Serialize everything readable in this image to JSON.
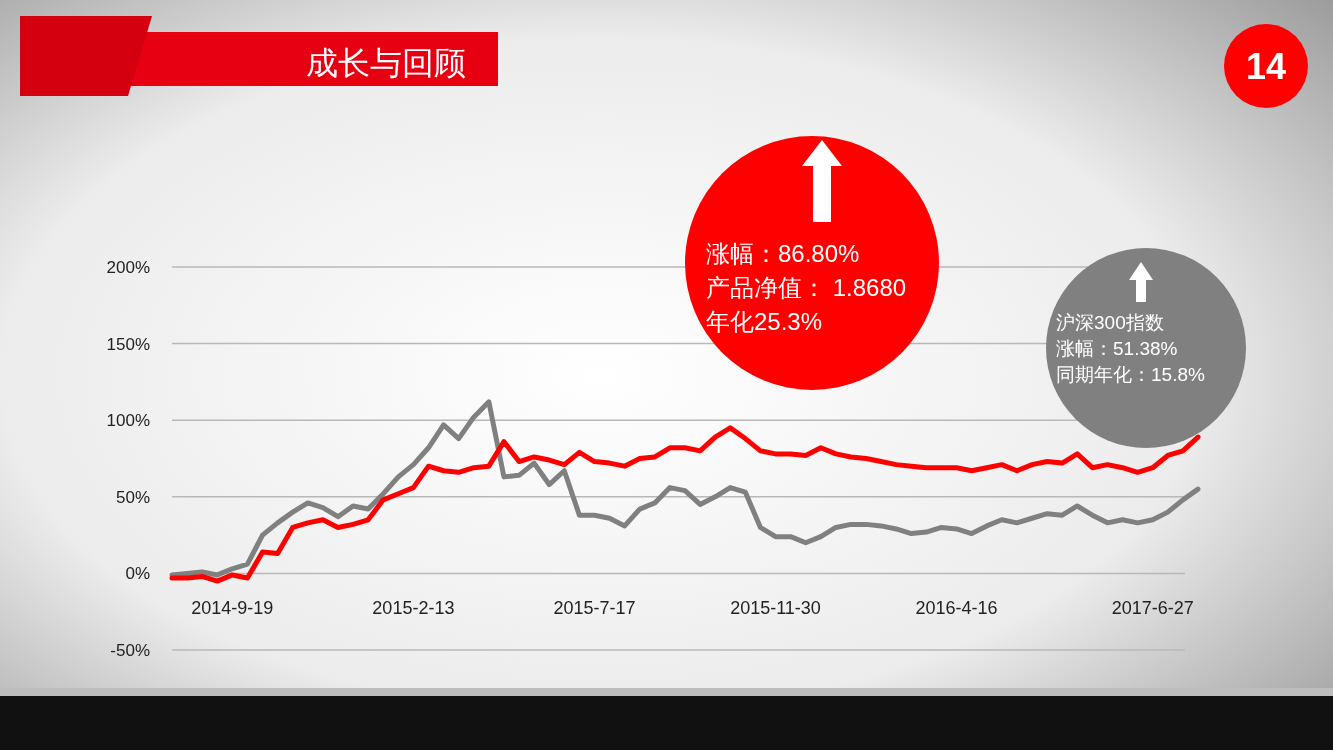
{
  "chart_data": {
    "type": "line",
    "title": "成长与回顾",
    "categories": [
      null,
      null,
      null,
      null,
      "2014-9-19",
      null,
      null,
      null,
      null,
      null,
      null,
      null,
      null,
      null,
      null,
      null,
      "2015-2-13",
      null,
      null,
      null,
      null,
      null,
      null,
      null,
      null,
      null,
      null,
      null,
      "2015-7-17",
      null,
      null,
      null,
      null,
      null,
      null,
      null,
      null,
      null,
      null,
      null,
      "2015-11-30",
      null,
      null,
      null,
      null,
      null,
      null,
      null,
      null,
      null,
      null,
      null,
      "2016-4-16",
      null,
      null,
      null,
      null,
      null,
      null,
      null,
      null,
      null,
      null,
      null,
      null,
      "2017-6-27",
      null,
      null,
      null
    ],
    "series": [
      {
        "color": "#808080",
        "values": [
          -1,
          0,
          1,
          -1,
          3,
          6,
          25,
          33,
          40,
          46,
          43,
          37,
          44,
          42,
          52,
          63,
          71,
          82,
          97,
          88,
          102,
          112,
          63,
          64,
          72,
          58,
          67,
          38,
          38,
          36,
          31,
          42,
          46,
          56,
          54,
          45,
          50,
          56,
          53,
          30,
          24,
          24,
          20,
          24,
          30,
          32,
          32,
          31,
          29,
          26,
          27,
          30,
          29,
          26,
          31,
          35,
          33,
          36,
          39,
          38,
          44,
          38,
          33,
          35,
          33,
          35,
          40,
          48,
          55
        ]
      },
      {
        "color": "#ff0000",
        "values": [
          -3,
          -3,
          -2,
          -5,
          -1,
          -3,
          14,
          13,
          30,
          33,
          35,
          30,
          32,
          35,
          48,
          52,
          56,
          70,
          67,
          66,
          69,
          70,
          86,
          73,
          76,
          74,
          71,
          79,
          73,
          72,
          70,
          75,
          76,
          82,
          82,
          80,
          89,
          95,
          88,
          80,
          78,
          78,
          77,
          82,
          78,
          76,
          75,
          73,
          71,
          70,
          69,
          69,
          69,
          67,
          69,
          71,
          67,
          71,
          73,
          72,
          78,
          69,
          71,
          69,
          66,
          69,
          77,
          80,
          89
        ]
      }
    ],
    "ylim": [
      -50,
      200
    ],
    "yticks": [
      {
        "value": -50,
        "label": "-50%"
      },
      {
        "value": 0,
        "label": "0%"
      },
      {
        "value": 50,
        "label": "50%"
      },
      {
        "value": 100,
        "label": "100%"
      },
      {
        "value": 150,
        "label": "150%"
      },
      {
        "value": 200,
        "label": "200%"
      }
    ],
    "grid": "y",
    "annotations": [
      "涨幅：86.80%",
      "产品净值： 1.8680",
      "年化25.3%",
      "沪深300指数",
      "涨幅：51.38%",
      "同期年化：15.8%",
      "14"
    ]
  }
}
